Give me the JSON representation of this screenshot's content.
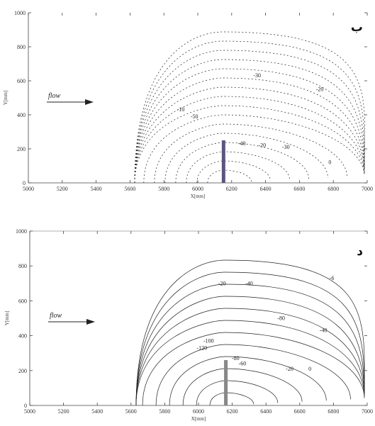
{
  "chart_data": [
    {
      "type": "contour",
      "panel_label": "ب",
      "flow_label": "flow",
      "xlabel": "X[mm]",
      "ylabel": "Y[mm]",
      "x_ticks": [
        "5000",
        "5200",
        "5400",
        "5600",
        "5800",
        "6000",
        "6200",
        "6400",
        "6600",
        "6800",
        "7000"
      ],
      "y_ticks": [
        "0",
        "200",
        "400",
        "600",
        "800",
        "1000"
      ],
      "xlim": [
        5000,
        7000
      ],
      "ylim": [
        0,
        1000
      ],
      "barrier": {
        "x": 6150,
        "y_top": 250,
        "y_bottom": 0
      },
      "contour_labels": [
        {
          "text": "-30",
          "x": 6350,
          "y": 620
        },
        {
          "text": "-20",
          "x": 6720,
          "y": 540
        },
        {
          "text": "-10",
          "x": 5900,
          "y": 420
        },
        {
          "text": "-50",
          "x": 5980,
          "y": 380
        },
        {
          "text": "-40",
          "x": 6260,
          "y": 220
        },
        {
          "text": "-20",
          "x": 6380,
          "y": 210
        },
        {
          "text": "-30",
          "x": 6520,
          "y": 200
        },
        {
          "text": "0",
          "x": 6780,
          "y": 110
        }
      ]
    },
    {
      "type": "contour",
      "panel_label": "د",
      "flow_label": "flow",
      "xlabel": "X[mm]",
      "ylabel": "Y[mm]",
      "x_ticks": [
        "5000",
        "5200",
        "5400",
        "5600",
        "5800",
        "6000",
        "6200",
        "6400",
        "6600",
        "6800",
        "7000"
      ],
      "y_ticks": [
        "0",
        "200",
        "400",
        "600",
        "800",
        "1000"
      ],
      "xlim": [
        5000,
        7000
      ],
      "ylim": [
        0,
        1000
      ],
      "barrier": {
        "x": 6160,
        "y_top": 260,
        "y_bottom": 0
      },
      "contour_labels": [
        {
          "text": "-20",
          "x": 6140,
          "y": 690
        },
        {
          "text": "-40",
          "x": 6300,
          "y": 690
        },
        {
          "text": "-6",
          "x": 6790,
          "y": 720
        },
        {
          "text": "-80",
          "x": 6490,
          "y": 490
        },
        {
          "text": "-40",
          "x": 6740,
          "y": 420
        },
        {
          "text": "-100",
          "x": 6060,
          "y": 360
        },
        {
          "text": "-120",
          "x": 6020,
          "y": 320
        },
        {
          "text": "-80",
          "x": 6220,
          "y": 260
        },
        {
          "text": "-60",
          "x": 6260,
          "y": 230
        },
        {
          "text": "-20",
          "x": 6540,
          "y": 200
        },
        {
          "text": "0",
          "x": 6660,
          "y": 200
        }
      ]
    }
  ]
}
